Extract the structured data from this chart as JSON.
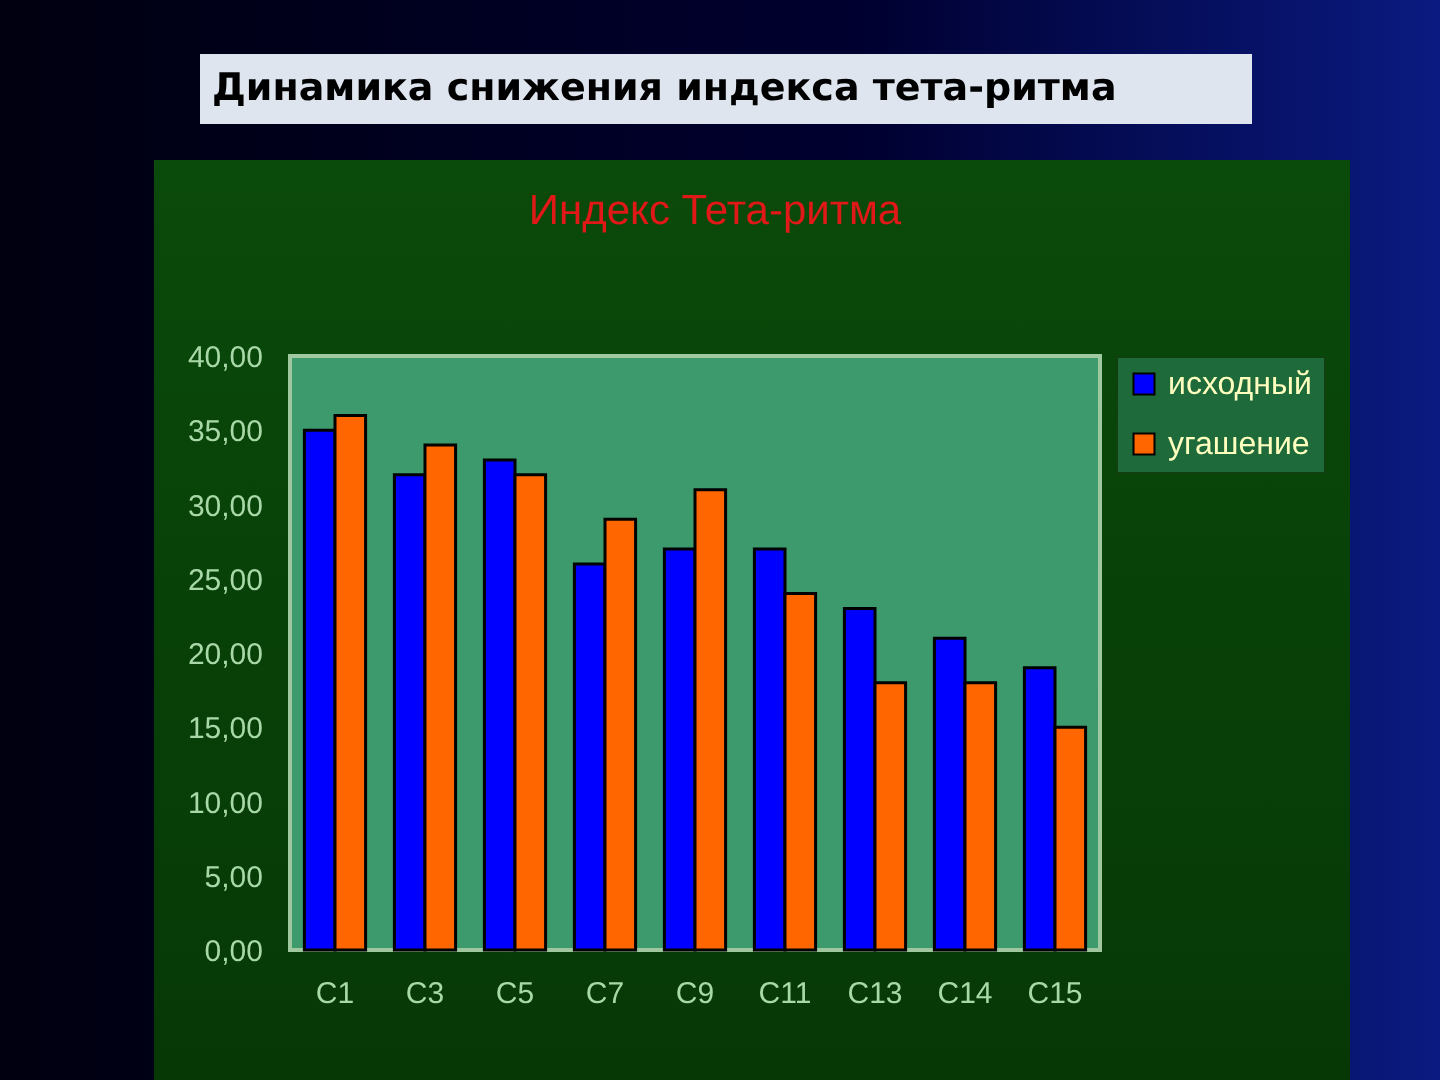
{
  "chart_data": {
    "type": "bar",
    "title": "Динамика снижения индекса тета-ритма",
    "subtitle": "Индекс Тета-ритма",
    "categories": [
      "C1",
      "C3",
      "C5",
      "C7",
      "C9",
      "C11",
      "C13",
      "C14",
      "C15"
    ],
    "series": [
      {
        "name": "исходный",
        "color": "#0000ff",
        "values": [
          35,
          32,
          33,
          26,
          27,
          27,
          23,
          21,
          19
        ]
      },
      {
        "name": "угашение",
        "color": "#ff6600",
        "values": [
          36,
          34,
          32,
          29,
          31,
          24,
          18,
          18,
          15
        ]
      }
    ],
    "ylim": [
      0,
      40
    ],
    "yticks": [
      {
        "value": 0,
        "label": "0,00"
      },
      {
        "value": 5,
        "label": "5,00"
      },
      {
        "value": 10,
        "label": "10,00"
      },
      {
        "value": 15,
        "label": "15,00"
      },
      {
        "value": 20,
        "label": "20,00"
      },
      {
        "value": 25,
        "label": "25,00"
      },
      {
        "value": 30,
        "label": "30,00"
      },
      {
        "value": 35,
        "label": "35,00"
      },
      {
        "value": 40,
        "label": "40,00"
      }
    ],
    "grid": false,
    "legend": "right"
  }
}
